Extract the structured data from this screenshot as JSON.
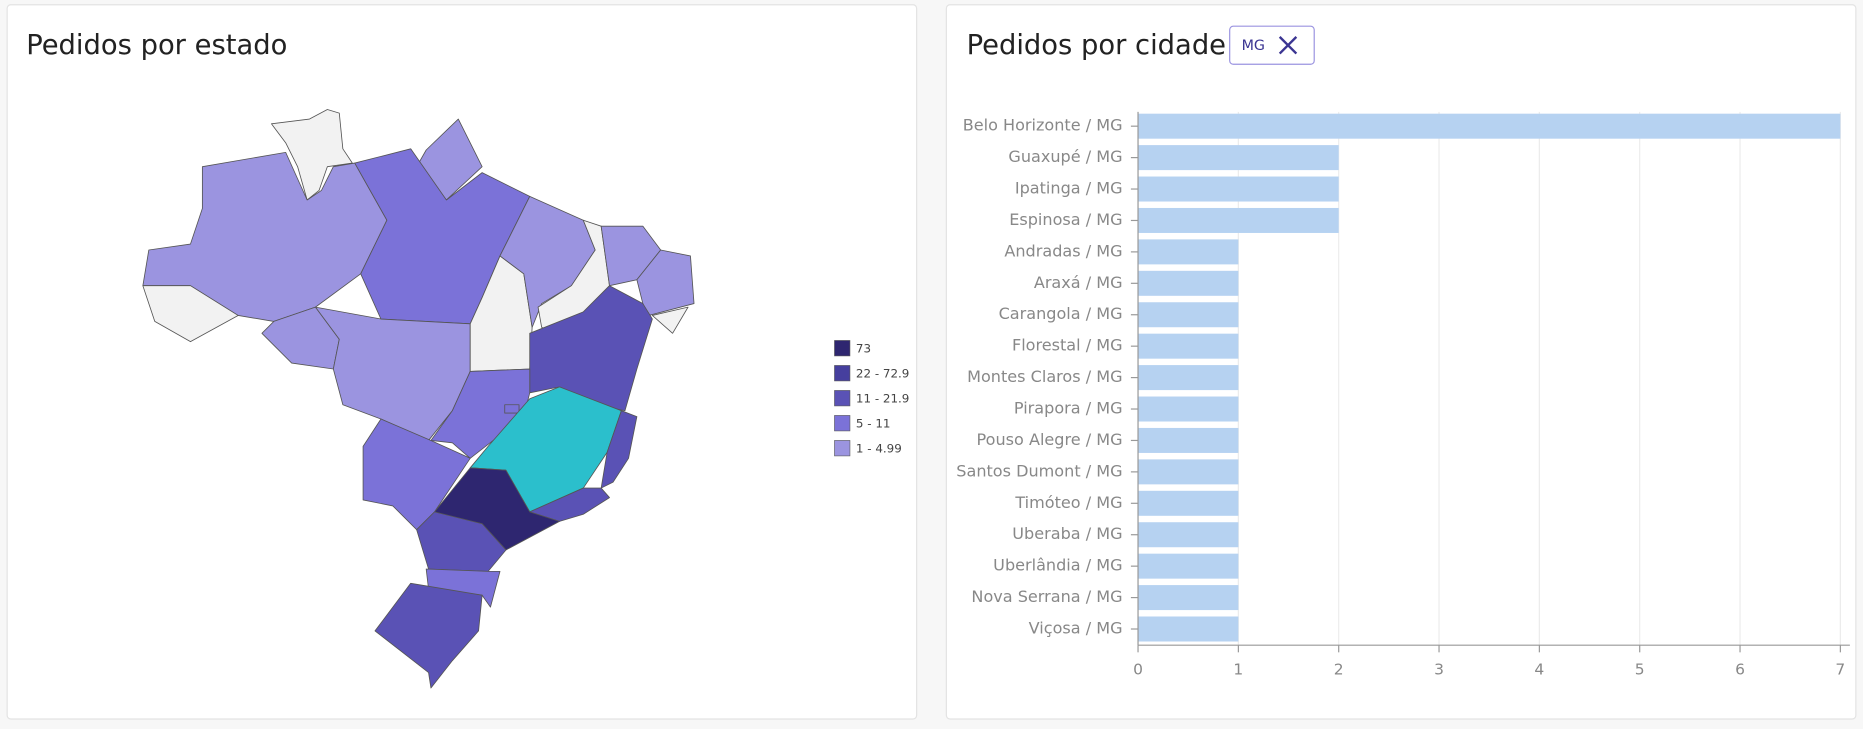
{
  "chart_data": [
    {
      "type": "choropleth",
      "title": "Pedidos por estado",
      "legend": [
        {
          "label": "73",
          "color": "#2e2670"
        },
        {
          "label": "22 - 72.9",
          "color": "#463f9e"
        },
        {
          "label": "11 - 21.9",
          "color": "#5a52b5"
        },
        {
          "label": "5 - 11",
          "color": "#7b72d8"
        },
        {
          "label": "1 - 4.99",
          "color": "#9b94e0"
        }
      ],
      "selected_color": "#2bbfcc",
      "empty_color": "#f2f2f2"
    },
    {
      "type": "bar",
      "orientation": "horizontal",
      "title": "Pedidos por cidade",
      "filter": "MG",
      "categories": [
        "Belo Horizonte / MG",
        "Guaxupé / MG",
        "Ipatinga / MG",
        "Espinosa / MG",
        "Andradas / MG",
        "Araxá / MG",
        "Carangola / MG",
        "Florestal / MG",
        "Montes Claros / MG",
        "Pirapora / MG",
        "Pouso Alegre / MG",
        "Santos Dumont / MG",
        "Timóteo / MG",
        "Uberaba / MG",
        "Uberlândia / MG",
        "Nova Serrana / MG",
        "Viçosa / MG"
      ],
      "values": [
        7,
        2,
        2,
        2,
        1,
        1,
        1,
        1,
        1,
        1,
        1,
        1,
        1,
        1,
        1,
        1,
        1
      ],
      "color": "#b6d2f1",
      "xlim": [
        0,
        7
      ],
      "xticks": [
        0,
        1,
        2,
        3,
        4,
        5,
        6,
        7
      ],
      "grid": true
    }
  ]
}
